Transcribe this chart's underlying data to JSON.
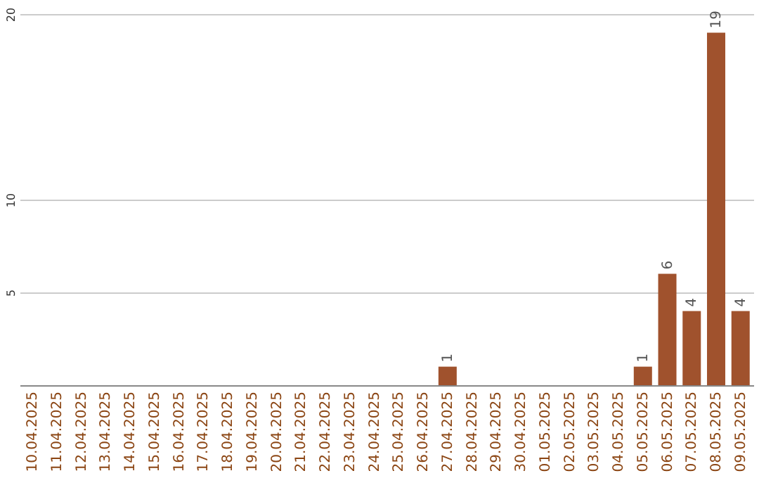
{
  "chart_data": {
    "type": "bar",
    "categories": [
      "10.04.2025",
      "11.04.2025",
      "12.04.2025",
      "13.04.2025",
      "14.04.2025",
      "15.04.2025",
      "16.04.2025",
      "17.04.2025",
      "18.04.2025",
      "19.04.2025",
      "20.04.2025",
      "21.04.2025",
      "22.04.2025",
      "23.04.2025",
      "24.04.2025",
      "25.04.2025",
      "26.04.2025",
      "27.04.2025",
      "28.04.2025",
      "29.04.2025",
      "30.04.2025",
      "01.05.2025",
      "02.05.2025",
      "03.05.2025",
      "04.05.2025",
      "05.05.2025",
      "06.05.2025",
      "07.05.2025",
      "08.05.2025",
      "09.05.2025"
    ],
    "values": [
      0,
      0,
      0,
      0,
      0,
      0,
      0,
      0,
      0,
      0,
      0,
      0,
      0,
      0,
      0,
      0,
      0,
      1,
      0,
      0,
      0,
      0,
      0,
      0,
      0,
      1,
      6,
      4,
      19,
      4
    ],
    "value_labels": [
      null,
      null,
      null,
      null,
      null,
      null,
      null,
      null,
      null,
      null,
      null,
      null,
      null,
      null,
      null,
      null,
      null,
      "1",
      null,
      null,
      null,
      null,
      null,
      null,
      null,
      "1",
      "6",
      "4",
      "19",
      "4"
    ],
    "color": "#a0522d",
    "ylim": [
      0,
      20
    ],
    "yticks": [
      5,
      10,
      20
    ],
    "grid": "y"
  }
}
